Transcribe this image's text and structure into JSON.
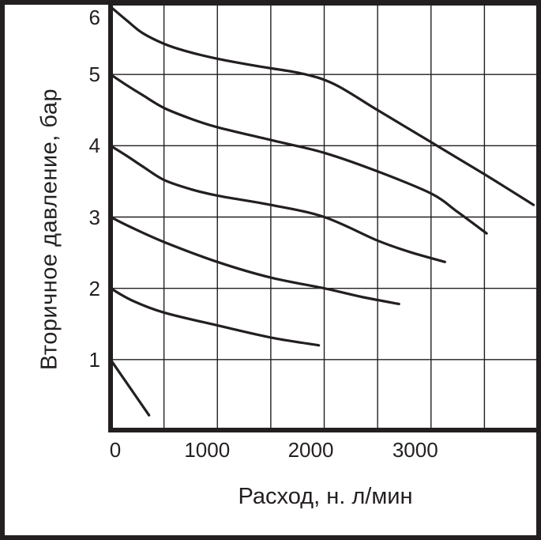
{
  "figure": {
    "background": "#ffffff",
    "frame_color": "#231f20"
  },
  "chart_data": {
    "type": "line",
    "title": "",
    "xlabel": "Расход, н. л/мин",
    "ylabel": "Вторичное давление, бар",
    "xlim": [
      0,
      4000
    ],
    "ylim": [
      0,
      6
    ],
    "x_grid_step": 500,
    "y_grid_step": 1,
    "x_tick_values": [
      0,
      1000,
      2000,
      3000
    ],
    "x_tick_labels": [
      "0",
      "1000",
      "2000",
      "3000"
    ],
    "y_tick_values": [
      6,
      5,
      4,
      3,
      2,
      1
    ],
    "y_tick_labels": [
      "6",
      "5",
      "4",
      "3",
      "2",
      "1"
    ],
    "grid": true,
    "legend": false,
    "line_color": "#231f20",
    "series": [
      {
        "name": "curve-6-bar",
        "points": [
          [
            0,
            5.95
          ],
          [
            150,
            5.76
          ],
          [
            300,
            5.58
          ],
          [
            500,
            5.43
          ],
          [
            700,
            5.33
          ],
          [
            1000,
            5.22
          ],
          [
            1400,
            5.11
          ],
          [
            1800,
            5.01
          ],
          [
            2100,
            4.86
          ],
          [
            2500,
            4.5
          ],
          [
            3000,
            4.05
          ],
          [
            3500,
            3.6
          ],
          [
            3960,
            3.17
          ]
        ]
      },
      {
        "name": "curve-5-bar",
        "points": [
          [
            0,
            5.0
          ],
          [
            150,
            4.85
          ],
          [
            300,
            4.71
          ],
          [
            500,
            4.53
          ],
          [
            750,
            4.38
          ],
          [
            1000,
            4.26
          ],
          [
            1500,
            4.08
          ],
          [
            2000,
            3.9
          ],
          [
            2500,
            3.64
          ],
          [
            3000,
            3.33
          ],
          [
            3250,
            3.07
          ],
          [
            3520,
            2.77
          ]
        ]
      },
      {
        "name": "curve-4-bar",
        "points": [
          [
            0,
            4.0
          ],
          [
            150,
            3.86
          ],
          [
            300,
            3.71
          ],
          [
            500,
            3.52
          ],
          [
            750,
            3.39
          ],
          [
            1000,
            3.3
          ],
          [
            1500,
            3.17
          ],
          [
            2000,
            3.0
          ],
          [
            2500,
            2.67
          ],
          [
            2800,
            2.51
          ],
          [
            3130,
            2.37
          ]
        ]
      },
      {
        "name": "curve-3-bar",
        "points": [
          [
            0,
            3.0
          ],
          [
            200,
            2.85
          ],
          [
            500,
            2.65
          ],
          [
            1000,
            2.37
          ],
          [
            1500,
            2.15
          ],
          [
            2000,
            2.0
          ],
          [
            2350,
            1.88
          ],
          [
            2700,
            1.78
          ]
        ]
      },
      {
        "name": "curve-2-bar",
        "points": [
          [
            0,
            2.0
          ],
          [
            200,
            1.83
          ],
          [
            500,
            1.66
          ],
          [
            1000,
            1.48
          ],
          [
            1500,
            1.31
          ],
          [
            1950,
            1.2
          ]
        ]
      },
      {
        "name": "curve-1-bar",
        "points": [
          [
            0,
            1.0
          ],
          [
            360,
            0.22
          ]
        ]
      }
    ]
  }
}
